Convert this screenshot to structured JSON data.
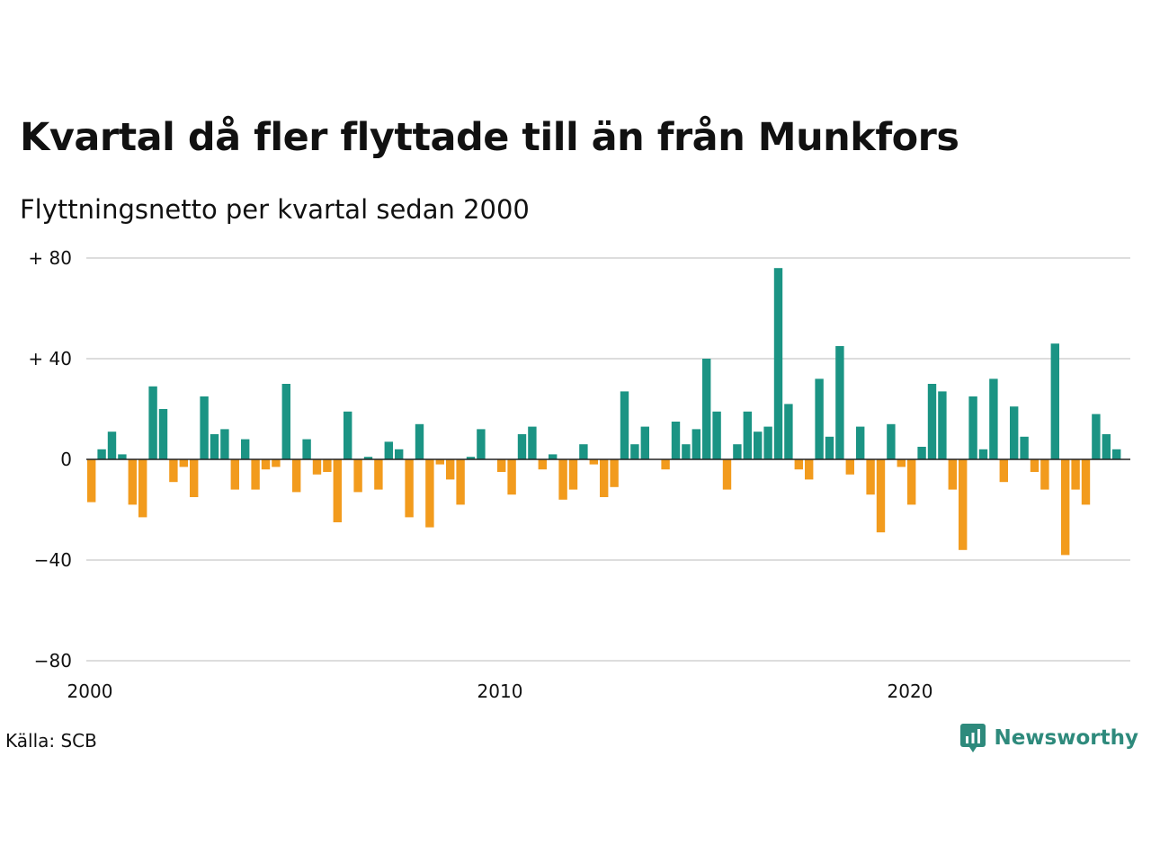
{
  "header": {
    "title": "Kvartal då fler flyttade till än från Munkfors",
    "subtitle": "Flyttningsnetto per kvartal sedan 2000"
  },
  "footer": {
    "source": "Källa: SCB",
    "brand": "Newsworthy",
    "brand_icon": "newsworthy-logo-icon"
  },
  "colors": {
    "positive": "#1b9484",
    "negative": "#f29b1d",
    "grid": "#dddddd",
    "zero_line": "#222222",
    "brand": "#2e8a7c"
  },
  "chart_data": {
    "type": "bar",
    "title": "Kvartal då fler flyttade till än från Munkfors",
    "subtitle": "Flyttningsnetto per kvartal sedan 2000",
    "xlabel": "",
    "ylabel": "",
    "ylim": [
      -80,
      80
    ],
    "y_ticks": [
      80,
      40,
      0,
      -40,
      -80
    ],
    "y_tick_labels": [
      "+ 80",
      "+ 40",
      "0",
      "−40",
      "−80"
    ],
    "x_ticks": [
      2000,
      2010,
      2020
    ],
    "x_tick_labels": [
      "2000",
      "2010",
      "2020"
    ],
    "grid": true,
    "x_start": "2000 Q1",
    "categories": [
      "2000 Q1",
      "2000 Q2",
      "2000 Q3",
      "2000 Q4",
      "2001 Q1",
      "2001 Q2",
      "2001 Q3",
      "2001 Q4",
      "2002 Q1",
      "2002 Q2",
      "2002 Q3",
      "2002 Q4",
      "2003 Q1",
      "2003 Q2",
      "2003 Q3",
      "2003 Q4",
      "2004 Q1",
      "2004 Q2",
      "2004 Q3",
      "2004 Q4",
      "2005 Q1",
      "2005 Q2",
      "2005 Q3",
      "2005 Q4",
      "2006 Q1",
      "2006 Q2",
      "2006 Q3",
      "2006 Q4",
      "2007 Q1",
      "2007 Q2",
      "2007 Q3",
      "2007 Q4",
      "2008 Q1",
      "2008 Q2",
      "2008 Q3",
      "2008 Q4",
      "2009 Q1",
      "2009 Q2",
      "2009 Q3",
      "2009 Q4",
      "2010 Q1",
      "2010 Q2",
      "2010 Q3",
      "2010 Q4",
      "2011 Q1",
      "2011 Q2",
      "2011 Q3",
      "2011 Q4",
      "2012 Q1",
      "2012 Q2",
      "2012 Q3",
      "2012 Q4",
      "2013 Q1",
      "2013 Q2",
      "2013 Q3",
      "2013 Q4",
      "2014 Q1",
      "2014 Q2",
      "2014 Q3",
      "2014 Q4",
      "2015 Q1",
      "2015 Q2",
      "2015 Q3",
      "2015 Q4",
      "2016 Q1",
      "2016 Q2",
      "2016 Q3",
      "2016 Q4",
      "2017 Q1",
      "2017 Q2",
      "2017 Q3",
      "2017 Q4",
      "2018 Q1",
      "2018 Q2",
      "2018 Q3",
      "2018 Q4",
      "2019 Q1",
      "2019 Q2",
      "2019 Q3",
      "2019 Q4",
      "2020 Q1",
      "2020 Q2",
      "2020 Q3",
      "2020 Q4",
      "2021 Q1",
      "2021 Q2",
      "2021 Q3",
      "2021 Q4",
      "2022 Q1",
      "2022 Q2",
      "2022 Q3",
      "2022 Q4",
      "2023 Q1",
      "2023 Q2",
      "2023 Q3",
      "2023 Q4",
      "2024 Q1",
      "2024 Q2",
      "2024 Q3",
      "2024 Q4",
      "2025 Q1",
      "2025 Q2"
    ],
    "values": [
      -17,
      4,
      11,
      2,
      -18,
      -23,
      29,
      20,
      -9,
      -3,
      -15,
      25,
      10,
      12,
      -12,
      8,
      -12,
      -4,
      -3,
      30,
      -13,
      8,
      -6,
      -5,
      -25,
      19,
      -13,
      1,
      -12,
      7,
      4,
      -23,
      14,
      -27,
      -2,
      -8,
      -18,
      1,
      12,
      0,
      -5,
      -14,
      10,
      13,
      -4,
      2,
      -16,
      -12,
      6,
      -2,
      -15,
      -11,
      27,
      6,
      13,
      0,
      -4,
      15,
      6,
      12,
      40,
      19,
      -12,
      6,
      19,
      11,
      13,
      76,
      22,
      -4,
      -8,
      32,
      9,
      45,
      -6,
      13,
      -14,
      -29,
      14,
      -3,
      -18,
      5,
      30,
      27,
      -12,
      -36,
      25,
      4,
      32,
      -9,
      21,
      9,
      -5,
      -12,
      46,
      -38,
      -12,
      -18,
      18,
      10,
      4,
      0
    ]
  }
}
